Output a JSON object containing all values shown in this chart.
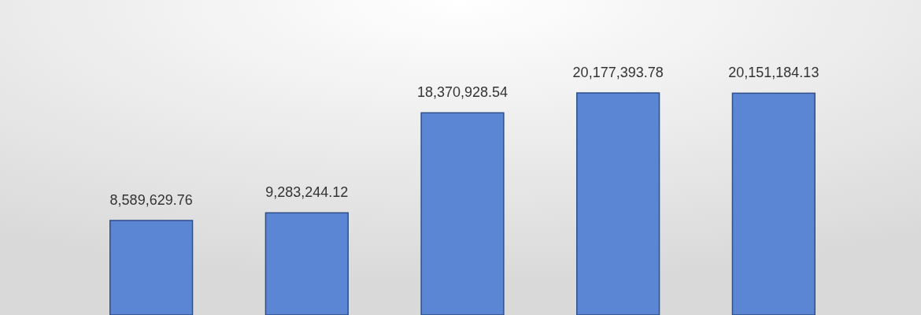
{
  "chart_data": {
    "type": "bar",
    "categories": [
      null,
      null,
      null,
      null,
      null
    ],
    "values": [
      8589629.76,
      9283244.12,
      18370928.54,
      20177393.78,
      20151184.13
    ],
    "value_labels": [
      "8,589,629.76",
      "9,283,244.12",
      "18,370,928.54",
      "20,177,393.78",
      "20,151,184.13"
    ],
    "color": "#5b86d3"
  }
}
